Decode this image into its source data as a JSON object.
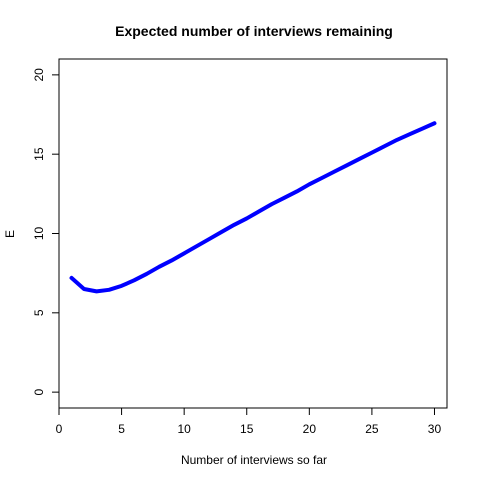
{
  "chart_data": {
    "type": "line",
    "title": "Expected number of interviews remaining",
    "xlabel": "Number of interviews so far",
    "ylabel": "E",
    "xlim": [
      0,
      31
    ],
    "ylim": [
      -1,
      21
    ],
    "xticks": [
      0,
      5,
      10,
      15,
      20,
      25,
      30
    ],
    "yticks": [
      0,
      5,
      10,
      15,
      20
    ],
    "grid": false,
    "line_color": "#0000ff",
    "series": [
      {
        "x": [
          1,
          2,
          3,
          4,
          5,
          6,
          7,
          8,
          9,
          10,
          11,
          12,
          13,
          14,
          15,
          16,
          17,
          18,
          19,
          20,
          21,
          22,
          23,
          24,
          25,
          26,
          27,
          28,
          29,
          30
        ],
        "y": [
          7.2,
          6.5,
          6.35,
          6.45,
          6.7,
          7.05,
          7.45,
          7.9,
          8.3,
          8.75,
          9.2,
          9.65,
          10.1,
          10.55,
          10.95,
          11.4,
          11.85,
          12.25,
          12.65,
          13.1,
          13.5,
          13.9,
          14.3,
          14.7,
          15.1,
          15.5,
          15.9,
          16.25,
          16.6,
          16.95
        ]
      }
    ]
  }
}
